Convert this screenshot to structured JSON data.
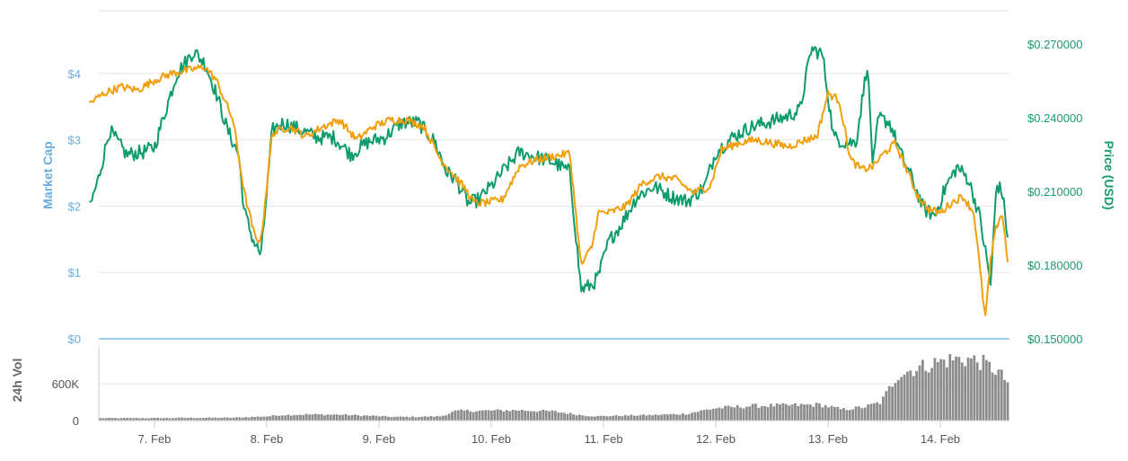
{
  "chart_data": {
    "type": "line",
    "x_categories": [
      "7. Feb",
      "8. Feb",
      "9. Feb",
      "10. Feb",
      "11. Feb",
      "12. Feb",
      "13. Feb",
      "14. Feb"
    ],
    "x_range": [
      "2018-02-06T10:00",
      "2018-02-14T15:00"
    ],
    "left_axis": {
      "title": "Market Cap",
      "ticks": [
        "$0",
        "$1",
        "$2",
        "$3",
        "$4"
      ],
      "range": [
        0,
        5
      ]
    },
    "right_axis": {
      "title": "Price (USD)",
      "ticks": [
        "$0.150000",
        "$0.180000",
        "$0.210000",
        "$0.240000",
        "$0.270000"
      ],
      "range": [
        0.15,
        0.285
      ]
    },
    "volume_axis": {
      "title": "24h Vol",
      "ticks": [
        "0",
        "600K"
      ],
      "range": [
        0,
        1200000
      ]
    },
    "colors": {
      "market_cap_line": "#f0a00f",
      "price_line": "#0e9b6e",
      "volume_bars": "#8c8c8c",
      "left_axis_text": "#6aaee0",
      "right_axis_text": "#1a9a70",
      "grid": "#e6e6e6",
      "divider": "#5ab0e0"
    },
    "series": [
      {
        "role": "price",
        "axis": "right",
        "x_days": [
          6.42,
          6.5,
          6.6,
          6.75,
          6.9,
          7.0,
          7.2,
          7.35,
          7.45,
          7.55,
          7.65,
          7.75,
          7.8,
          7.88,
          7.95,
          8.05,
          8.15,
          8.3,
          8.45,
          8.6,
          8.75,
          8.9,
          9.05,
          9.2,
          9.35,
          9.5,
          9.6,
          9.68,
          9.8,
          9.9,
          9.95,
          10.0,
          10.1,
          10.25,
          10.4,
          10.55,
          10.7,
          10.8,
          10.9,
          10.95,
          11.05,
          11.15,
          11.3,
          11.45,
          11.6,
          11.75,
          11.9,
          12.0,
          12.15,
          12.3,
          12.45,
          12.6,
          12.75,
          12.85,
          12.95,
          13.05,
          13.15,
          13.25,
          13.35,
          13.4,
          13.45,
          13.55,
          13.65,
          13.75,
          13.85,
          13.95,
          14.05,
          14.15,
          14.25,
          14.35,
          14.45,
          14.5,
          14.55,
          14.6
        ],
        "values": [
          0.203,
          0.215,
          0.235,
          0.225,
          0.226,
          0.228,
          0.258,
          0.267,
          0.262,
          0.25,
          0.235,
          0.225,
          0.202,
          0.19,
          0.184,
          0.235,
          0.238,
          0.235,
          0.232,
          0.232,
          0.225,
          0.23,
          0.232,
          0.238,
          0.238,
          0.23,
          0.218,
          0.215,
          0.205,
          0.207,
          0.21,
          0.212,
          0.218,
          0.226,
          0.224,
          0.222,
          0.218,
          0.17,
          0.172,
          0.175,
          0.19,
          0.196,
          0.208,
          0.212,
          0.208,
          0.206,
          0.212,
          0.226,
          0.232,
          0.236,
          0.238,
          0.24,
          0.243,
          0.268,
          0.266,
          0.232,
          0.23,
          0.23,
          0.262,
          0.22,
          0.24,
          0.238,
          0.225,
          0.215,
          0.203,
          0.2,
          0.212,
          0.22,
          0.215,
          0.2,
          0.172,
          0.213,
          0.21,
          0.192
        ]
      },
      {
        "role": "market-cap",
        "axis": "left",
        "x_days": [
          6.42,
          6.55,
          6.7,
          6.85,
          7.0,
          7.15,
          7.3,
          7.45,
          7.55,
          7.7,
          7.8,
          7.9,
          7.95,
          8.05,
          8.2,
          8.35,
          8.5,
          8.65,
          8.8,
          8.95,
          9.1,
          9.25,
          9.4,
          9.55,
          9.65,
          9.75,
          9.85,
          9.95,
          10.1,
          10.25,
          10.4,
          10.55,
          10.7,
          10.8,
          10.9,
          10.95,
          11.05,
          11.2,
          11.35,
          11.5,
          11.65,
          11.8,
          11.95,
          12.05,
          12.2,
          12.35,
          12.5,
          12.65,
          12.8,
          12.9,
          13.0,
          13.1,
          13.2,
          13.3,
          13.4,
          13.5,
          13.6,
          13.7,
          13.8,
          13.9,
          14.0,
          14.1,
          14.2,
          14.3,
          14.4,
          14.45,
          14.5,
          14.55,
          14.6
        ],
        "values": [
          3.55,
          3.7,
          3.8,
          3.75,
          3.9,
          4.0,
          4.05,
          4.1,
          3.9,
          3.3,
          2.2,
          1.5,
          1.5,
          3.1,
          3.2,
          3.05,
          3.2,
          3.3,
          3.0,
          3.2,
          3.3,
          3.3,
          3.2,
          2.7,
          2.5,
          2.3,
          2.05,
          2.05,
          2.1,
          2.6,
          2.7,
          2.75,
          2.8,
          1.1,
          1.4,
          1.9,
          1.9,
          2.0,
          2.35,
          2.45,
          2.4,
          2.2,
          2.3,
          2.85,
          2.95,
          3.0,
          2.95,
          2.9,
          3.0,
          3.05,
          3.7,
          3.6,
          2.7,
          2.55,
          2.6,
          2.8,
          2.95,
          2.55,
          2.15,
          1.95,
          1.9,
          2.05,
          2.15,
          1.9,
          0.3,
          1.2,
          1.7,
          1.9,
          1.2
        ]
      },
      {
        "role": "volume",
        "axis": "volume",
        "x_days": [
          6.42,
          6.9,
          7.3,
          7.6,
          7.95,
          8.05,
          8.3,
          8.6,
          8.9,
          9.05,
          9.25,
          9.5,
          9.62,
          9.7,
          9.9,
          10.2,
          10.5,
          10.8,
          10.9,
          11.1,
          11.4,
          11.7,
          11.95,
          12.3,
          12.7,
          12.9,
          13.1,
          13.3,
          13.45,
          13.6,
          13.75,
          13.95,
          14.1,
          14.25,
          14.35,
          14.5,
          14.6
        ],
        "values": [
          40000,
          40000,
          45000,
          45000,
          70000,
          90000,
          100000,
          95000,
          75000,
          60000,
          60000,
          70000,
          150000,
          160000,
          160000,
          170000,
          150000,
          80000,
          70000,
          80000,
          90000,
          110000,
          200000,
          240000,
          250000,
          260000,
          180000,
          220000,
          300000,
          750000,
          840000,
          950000,
          1000000,
          1000000,
          950000,
          800000,
          600000
        ]
      }
    ]
  }
}
